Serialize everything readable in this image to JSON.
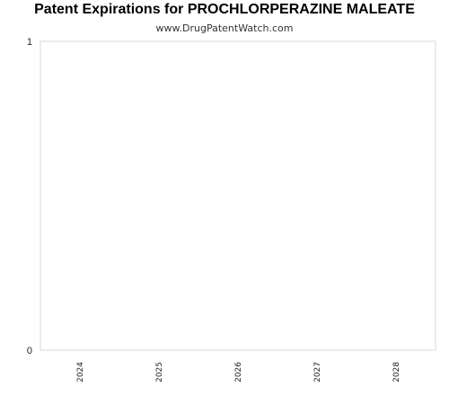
{
  "chart_data": {
    "type": "bar",
    "title": "Patent Expirations for PROCHLORPERAZINE MALEATE",
    "subtitle": "www.DrugPatentWatch.com",
    "categories": [
      "2024",
      "2025",
      "2026",
      "2027",
      "2028"
    ],
    "values": [
      0,
      0,
      0,
      0,
      0
    ],
    "ylim": [
      0,
      1
    ],
    "yticks": [
      "0",
      "1"
    ],
    "xlabel": "",
    "ylabel": "",
    "grid": false,
    "colors": {
      "frame": "#d9d9d9",
      "text": "#222222"
    }
  }
}
